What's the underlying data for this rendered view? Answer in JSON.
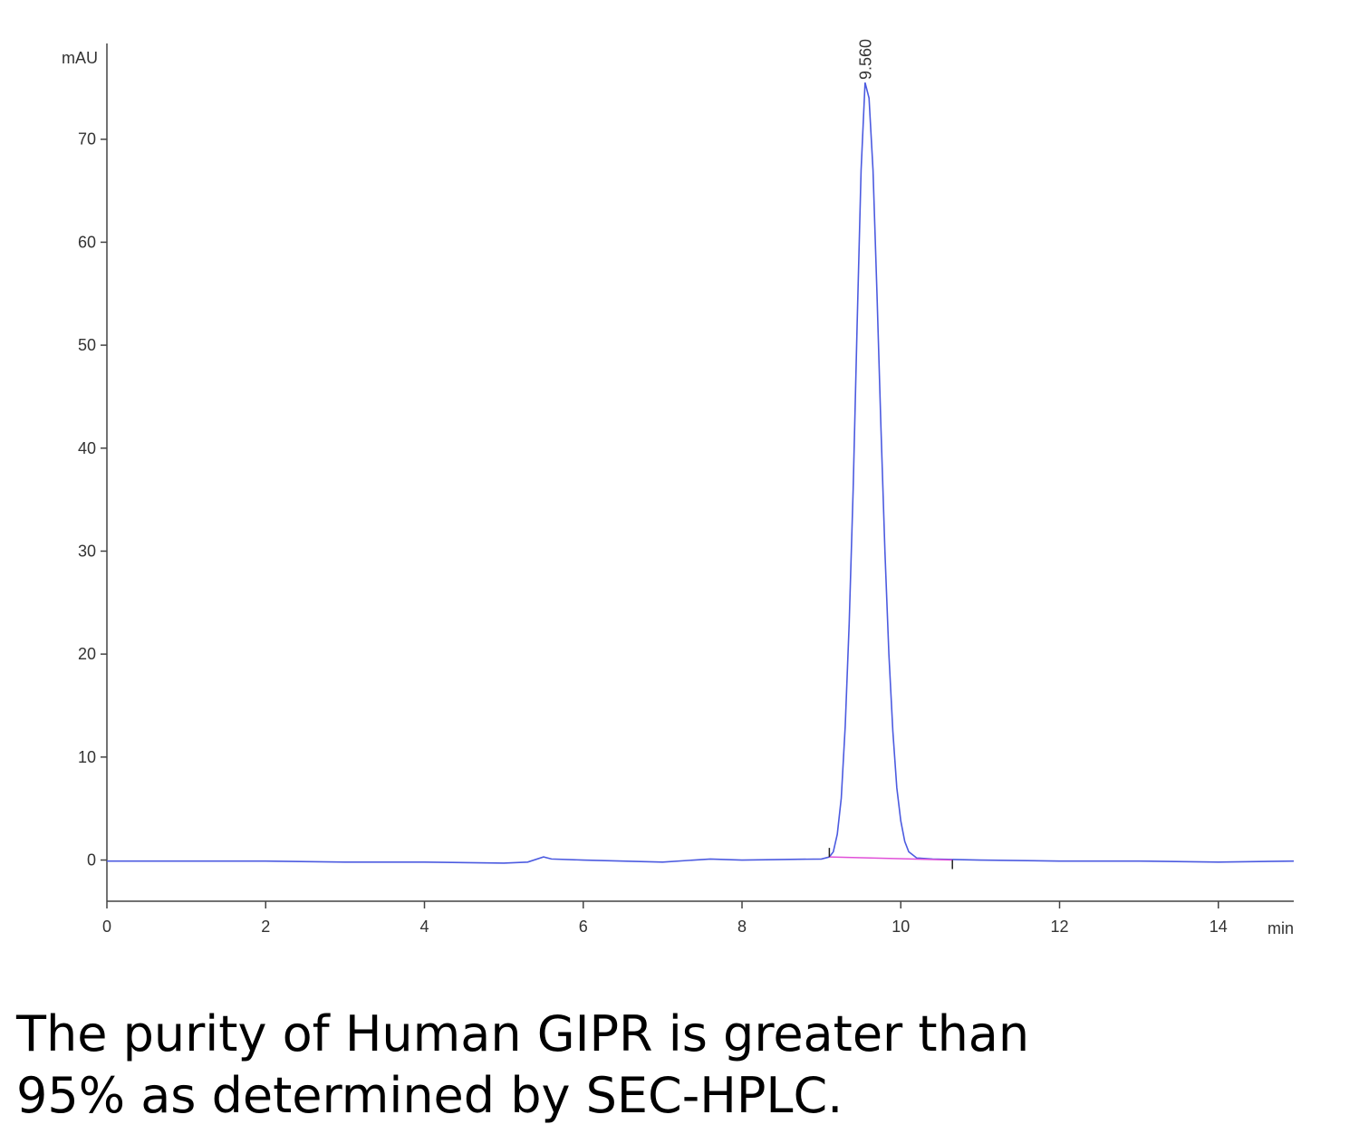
{
  "chart_data": {
    "type": "line",
    "y_label": "mAU",
    "x_label": "min",
    "xlim": [
      0,
      14.95
    ],
    "ylim": [
      -4,
      79.3
    ],
    "xticks": [
      0,
      2,
      4,
      6,
      8,
      10,
      12,
      14
    ],
    "yticks": [
      0,
      10,
      20,
      30,
      40,
      50,
      60,
      70
    ],
    "series": [
      {
        "color": "#4c5be0",
        "x": [
          0,
          1,
          2,
          3,
          4,
          5,
          5.3,
          5.5,
          5.6,
          6,
          7,
          7.6,
          8,
          9,
          9.1,
          9.15,
          9.2,
          9.25,
          9.3,
          9.35,
          9.4,
          9.45,
          9.5,
          9.55,
          9.6,
          9.65,
          9.7,
          9.75,
          9.8,
          9.85,
          9.9,
          9.95,
          10,
          10.05,
          10.1,
          10.2,
          10.4,
          11,
          12,
          13,
          14,
          14.95
        ],
        "values": [
          -0.1,
          -0.1,
          -0.1,
          -0.2,
          -0.2,
          -0.3,
          -0.2,
          0.3,
          0.1,
          0,
          -0.2,
          0.1,
          0,
          0.1,
          0.3,
          0.8,
          2.5,
          6,
          13,
          23,
          36,
          52,
          67,
          75.5,
          74,
          67,
          55,
          42,
          30,
          20,
          12.5,
          7,
          3.8,
          1.8,
          0.8,
          0.2,
          0.1,
          0,
          -0.1,
          -0.1,
          -0.2,
          -0.1
        ]
      }
    ],
    "baseline": {
      "color": "#e050d8",
      "x": [
        9.1,
        10.65
      ],
      "values": [
        0.3,
        0
      ]
    },
    "annotations": [
      {
        "label": "9.560",
        "x": 9.56
      }
    ]
  },
  "caption": [
    "The purity of Human GIPR is greater than",
    "95% as determined by SEC-HPLC."
  ]
}
